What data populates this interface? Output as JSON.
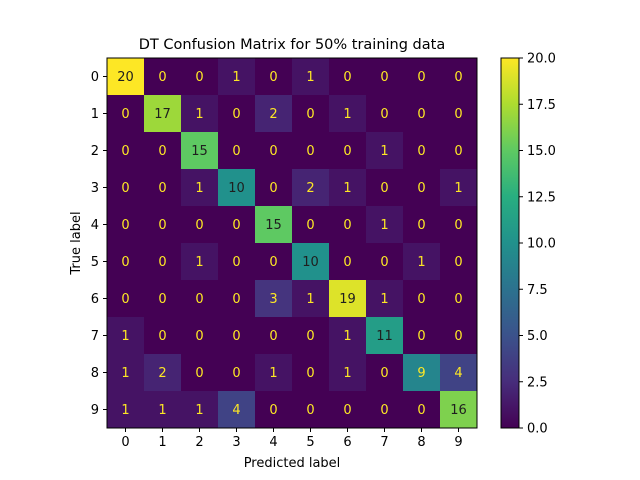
{
  "chart_data": {
    "type": "heatmap",
    "title": "DT Confusion Matrix for 50% training data",
    "xlabel": "Predicted label",
    "ylabel": "True label",
    "x_categories": [
      "0",
      "1",
      "2",
      "3",
      "4",
      "5",
      "6",
      "7",
      "8",
      "9"
    ],
    "y_categories": [
      "0",
      "1",
      "2",
      "3",
      "4",
      "5",
      "6",
      "7",
      "8",
      "9"
    ],
    "values": [
      [
        20,
        0,
        0,
        1,
        0,
        1,
        0,
        0,
        0,
        0
      ],
      [
        0,
        17,
        1,
        0,
        2,
        0,
        1,
        0,
        0,
        0
      ],
      [
        0,
        0,
        15,
        0,
        0,
        0,
        0,
        1,
        0,
        0
      ],
      [
        0,
        0,
        1,
        10,
        0,
        2,
        1,
        0,
        0,
        1
      ],
      [
        0,
        0,
        0,
        0,
        15,
        0,
        0,
        1,
        0,
        0
      ],
      [
        0,
        0,
        1,
        0,
        0,
        10,
        0,
        0,
        1,
        0
      ],
      [
        0,
        0,
        0,
        0,
        3,
        1,
        19,
        1,
        0,
        0
      ],
      [
        1,
        0,
        0,
        0,
        0,
        0,
        1,
        11,
        0,
        0
      ],
      [
        1,
        2,
        0,
        0,
        1,
        0,
        1,
        0,
        9,
        4
      ],
      [
        1,
        1,
        1,
        4,
        0,
        0,
        0,
        0,
        0,
        16
      ]
    ],
    "colormap": "viridis",
    "colorbar": {
      "min": 0,
      "max": 20,
      "ticks": [
        "0.0",
        "2.5",
        "5.0",
        "7.5",
        "10.0",
        "12.5",
        "15.0",
        "17.5",
        "20.0"
      ]
    },
    "colors": {
      "text_on_dark": "#fde725",
      "text_on_light": "#1f1f1f"
    }
  }
}
